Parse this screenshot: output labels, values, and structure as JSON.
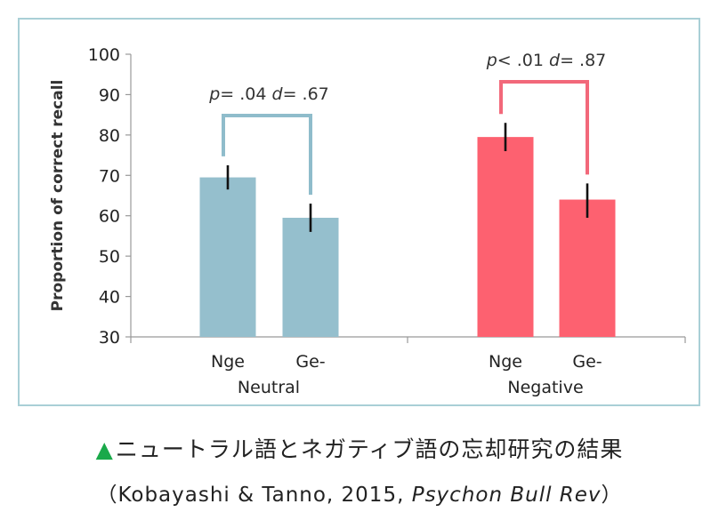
{
  "chart_data": {
    "type": "bar",
    "ylabel": "Proportion of correct recall",
    "ylim": [
      30,
      100
    ],
    "yticks": [
      30,
      40,
      50,
      60,
      70,
      80,
      90,
      100
    ],
    "groups": [
      {
        "name": "Neutral",
        "color": "#95bfcd",
        "bracket_color": "#8fbccb",
        "bars": [
          {
            "label": "Nge",
            "value": 69.5,
            "err_low": 66.5,
            "err_high": 72.5
          },
          {
            "label": "Ge-",
            "value": 59.5,
            "err_low": 56,
            "err_high": 63
          }
        ],
        "annotation": {
          "p": "p",
          "p_text": "= .04 ",
          "d": "d",
          "d_text": "= .67"
        }
      },
      {
        "name": "Negative",
        "color": "#fd6170",
        "bracket_color": "#f2687a",
        "bars": [
          {
            "label": "Nge",
            "value": 79.5,
            "err_low": 76,
            "err_high": 83
          },
          {
            "label": "Ge-",
            "value": 64,
            "err_low": 59.5,
            "err_high": 68
          }
        ],
        "annotation": {
          "p": "p",
          "p_text": "< .01 ",
          "d": "d",
          "d_text": "= .87"
        }
      }
    ]
  },
  "caption": {
    "marker": "▲",
    "title": "ニュートラル語とネガティブ語の忘却研究の結果",
    "citation_prefix": "（Kobayashi & Tanno, 2015, ",
    "citation_journal": "Psychon Bull Rev",
    "citation_suffix": "）"
  }
}
